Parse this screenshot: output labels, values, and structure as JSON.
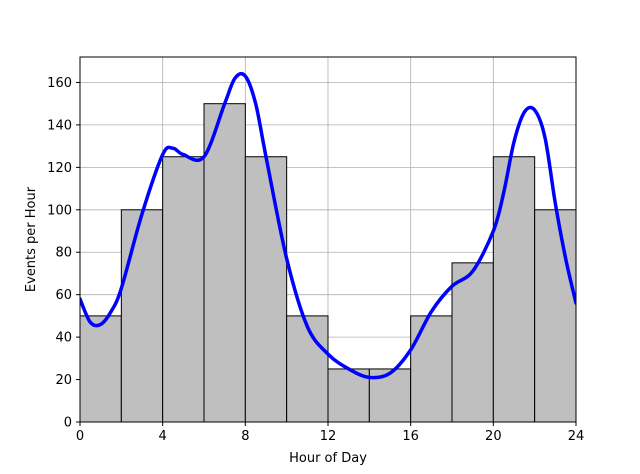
{
  "chart_data": {
    "type": "bar",
    "title": "",
    "xlabel": "Hour of Day",
    "ylabel": "Events per Hour",
    "xlim": [
      0,
      24
    ],
    "ylim": [
      0,
      172
    ],
    "xticks": [
      0,
      4,
      8,
      12,
      16,
      20,
      24
    ],
    "yticks": [
      0,
      20,
      40,
      60,
      80,
      100,
      120,
      140,
      160
    ],
    "grid": true,
    "bins": [
      {
        "x0": 0,
        "x1": 2,
        "value": 50
      },
      {
        "x0": 2,
        "x1": 4,
        "value": 100
      },
      {
        "x0": 4,
        "x1": 6,
        "value": 125
      },
      {
        "x0": 6,
        "x1": 8,
        "value": 150
      },
      {
        "x0": 8,
        "x1": 10,
        "value": 125
      },
      {
        "x0": 10,
        "x1": 12,
        "value": 50
      },
      {
        "x0": 12,
        "x1": 14,
        "value": 25
      },
      {
        "x0": 14,
        "x1": 16,
        "value": 25
      },
      {
        "x0": 16,
        "x1": 18,
        "value": 50
      },
      {
        "x0": 18,
        "x1": 20,
        "value": 75
      },
      {
        "x0": 20,
        "x1": 22,
        "value": 125
      },
      {
        "x0": 22,
        "x1": 24,
        "value": 100
      }
    ],
    "curve": {
      "type": "line",
      "color": "#0000ff",
      "x": [
        0,
        0.5,
        1,
        1.5,
        2,
        3,
        4,
        4.5,
        5,
        6,
        7,
        7.5,
        8,
        8.5,
        9,
        10,
        11,
        12,
        13,
        14,
        15,
        16,
        17,
        18,
        19,
        20,
        20.5,
        21,
        21.5,
        22,
        22.5,
        23,
        23.5,
        24
      ],
      "y": [
        58,
        47,
        46,
        52,
        63,
        98,
        126,
        129,
        126,
        125,
        150,
        162,
        163,
        150,
        125,
        77,
        45,
        32,
        25,
        21,
        23,
        34,
        52,
        64,
        71,
        90,
        108,
        132,
        146,
        147,
        134,
        103,
        77,
        56
      ]
    },
    "bar_color": "#bfbfbf",
    "bar_edge_color": "#000000"
  }
}
